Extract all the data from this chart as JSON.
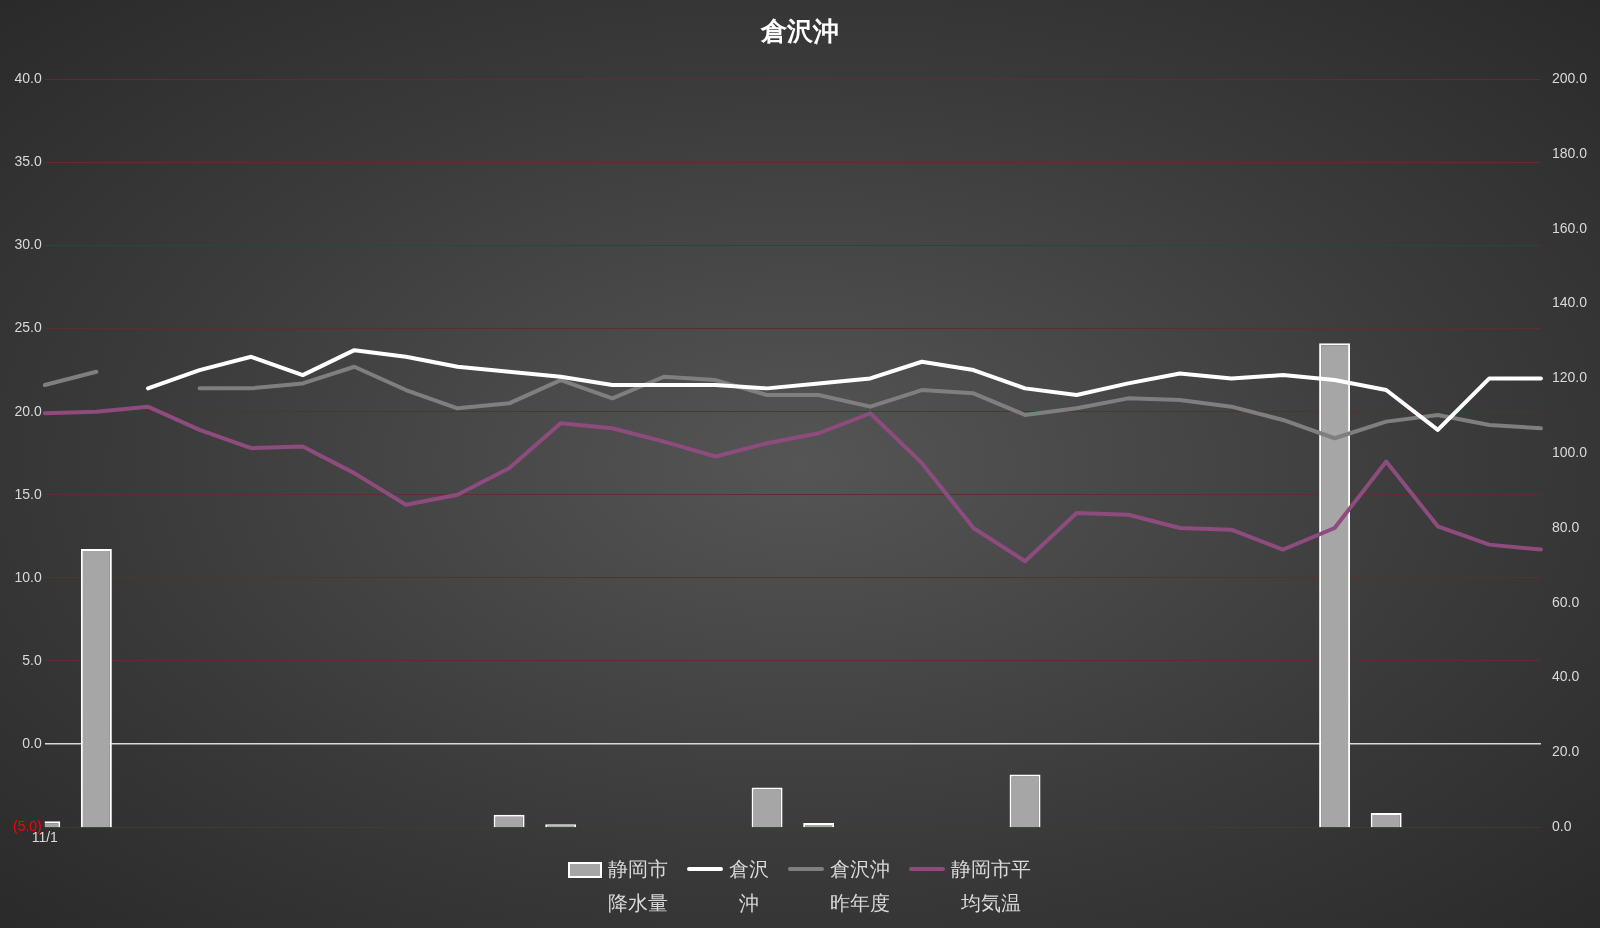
{
  "chart_data": {
    "type": "bar",
    "title": "倉沢沖",
    "categories": [
      "11/1",
      null,
      null,
      null,
      null,
      null,
      null,
      null,
      null,
      null,
      null,
      null,
      null,
      null,
      null,
      null,
      null,
      null,
      null,
      null,
      null,
      null,
      null,
      null,
      null,
      null,
      null,
      null,
      null,
      null
    ],
    "series": [
      {
        "name": "静岡市降水量",
        "axis": "y2",
        "color": "#a6a6a6",
        "values": [
          1.6,
          74.4,
          null,
          null,
          null,
          null,
          null,
          null,
          null,
          3.3,
          0.8,
          null,
          null,
          null,
          10.6,
          1.1,
          null,
          null,
          null,
          14.1,
          null,
          null,
          null,
          null,
          null,
          129.4,
          3.8,
          null,
          null,
          null
        ]
      },
      {
        "name": "倉沢沖",
        "type": "line",
        "color": "#ffffff",
        "values": [
          null,
          null,
          21.4,
          22.5,
          23.3,
          22.2,
          23.7,
          23.3,
          22.7,
          22.4,
          22.1,
          21.6,
          21.6,
          21.6,
          21.4,
          21.7,
          22.0,
          23.0,
          22.5,
          21.4,
          21.0,
          21.7,
          22.3,
          22.0,
          22.2,
          21.9,
          21.3,
          18.9,
          22.0,
          22.0
        ]
      },
      {
        "name": "倉沢沖昨年度",
        "type": "line",
        "color": "#7f7f7f",
        "values": [
          21.6,
          22.4,
          null,
          21.4,
          21.4,
          21.7,
          22.7,
          21.3,
          20.2,
          20.5,
          21.9,
          20.8,
          22.1,
          21.9,
          21.0,
          21.0,
          20.3,
          21.3,
          21.1,
          19.8,
          20.2,
          20.8,
          20.7,
          20.3,
          19.5,
          18.4,
          19.4,
          19.8,
          19.2,
          19.0
        ]
      },
      {
        "name": "静岡市平均気温",
        "type": "line",
        "color": "#8e4b7e",
        "values": [
          19.9,
          20.0,
          20.3,
          18.9,
          17.8,
          17.9,
          16.3,
          14.4,
          15.0,
          16.6,
          19.3,
          19.0,
          18.2,
          17.3,
          18.1,
          18.7,
          19.9,
          16.9,
          13.0,
          11.0,
          13.9,
          13.8,
          13.0,
          12.9,
          11.7,
          13.0,
          17.0,
          13.1,
          12.0,
          11.7
        ]
      }
    ],
    "ylim": [
      -5,
      40
    ],
    "yticks": [
      {
        "value": -5,
        "label": "(5.0)"
      },
      {
        "value": 0,
        "label": "0.0"
      },
      {
        "value": 5,
        "label": "5.0"
      },
      {
        "value": 10,
        "label": "10.0"
      },
      {
        "value": 15,
        "label": "15.0"
      },
      {
        "value": 20,
        "label": "20.0"
      },
      {
        "value": 25,
        "label": "25.0"
      },
      {
        "value": 30,
        "label": "30.0"
      },
      {
        "value": 35,
        "label": "35.0"
      },
      {
        "value": 40,
        "label": "40.0"
      }
    ],
    "y2lim": [
      0,
      200
    ],
    "y2ticks": [
      {
        "value": 0,
        "label": "0.0"
      },
      {
        "value": 20,
        "label": "20.0"
      },
      {
        "value": 40,
        "label": "40.0"
      },
      {
        "value": 60,
        "label": "60.0"
      },
      {
        "value": 80,
        "label": "80.0"
      },
      {
        "value": 100,
        "label": "100.0"
      },
      {
        "value": 120,
        "label": "120.0"
      },
      {
        "value": 140,
        "label": "140.0"
      },
      {
        "value": 160,
        "label": "160.0"
      },
      {
        "value": 180,
        "label": "180.0"
      },
      {
        "value": 200,
        "label": "200.0"
      }
    ],
    "grid": "y",
    "legend": "bottom",
    "marker": "none",
    "line_style": "solid"
  }
}
